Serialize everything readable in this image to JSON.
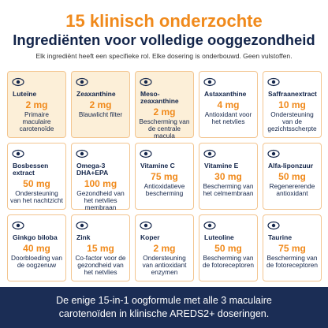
{
  "header": {
    "title": "15 klinisch onderzochte",
    "subtitle": "Ingrediënten voor volledige ooggezondheid",
    "intro": "Elk ingrediënt heeft een specifieke rol. Elke dosering is onderbouwd. Geen vulstoffen."
  },
  "cards": [
    {
      "name": "Luteïne",
      "dose": "2 mg",
      "desc": "Primaire maculaire carotenoïde"
    },
    {
      "name": "Zeaxanthine",
      "dose": "2 mg",
      "desc": "Blauwlicht filter"
    },
    {
      "name": "Meso-zeaxanthine",
      "dose": "2 mg",
      "desc": "Bescherming van de centrale macula"
    },
    {
      "name": "Astaxanthine",
      "dose": "4 mg",
      "desc": "Antioxidant voor het netvlies"
    },
    {
      "name": "Saffraanextract",
      "dose": "10 mg",
      "desc": "Ondersteuning van de gezichtsscherpte"
    },
    {
      "name": "Bosbessen extract",
      "dose": "50 mg",
      "desc": "Ondersteuning van het nachtzicht"
    },
    {
      "name": "Omega-3 DHA+EPA",
      "dose": "100 mg",
      "desc": "Gezondheid van het netvlies membraan"
    },
    {
      "name": "Vitamine C",
      "dose": "75 mg",
      "desc": "Antioxidatieve bescherming"
    },
    {
      "name": "Vitamine E",
      "dose": "30 mg",
      "desc": "Bescherming van het celmembraan"
    },
    {
      "name": "Alfa-liponzuur",
      "dose": "50 mg",
      "desc": "Regenererende antioxidant"
    },
    {
      "name": "Ginkgo biloba",
      "dose": "40 mg",
      "desc": "Doorbloeding van de oogzenuw"
    },
    {
      "name": "Zink",
      "dose": "15 mg",
      "desc": "Co-factor voor de gezondheid van het netvlies"
    },
    {
      "name": "Koper",
      "dose": "2 mg",
      "desc": "Ondersteuning van antioxidant enzymen"
    },
    {
      "name": "Luteoline",
      "dose": "50 mg",
      "desc": "Bescherming van de fotoreceptoren"
    },
    {
      "name": "Taurine",
      "dose": "75 mg",
      "desc": "Bescherming van de fotoreceptoren"
    }
  ],
  "footer": {
    "text": "De enige 15-in-1 oogformule met alle 3 maculaire carotenoïden in klinische AREDS2+ doseringen."
  }
}
